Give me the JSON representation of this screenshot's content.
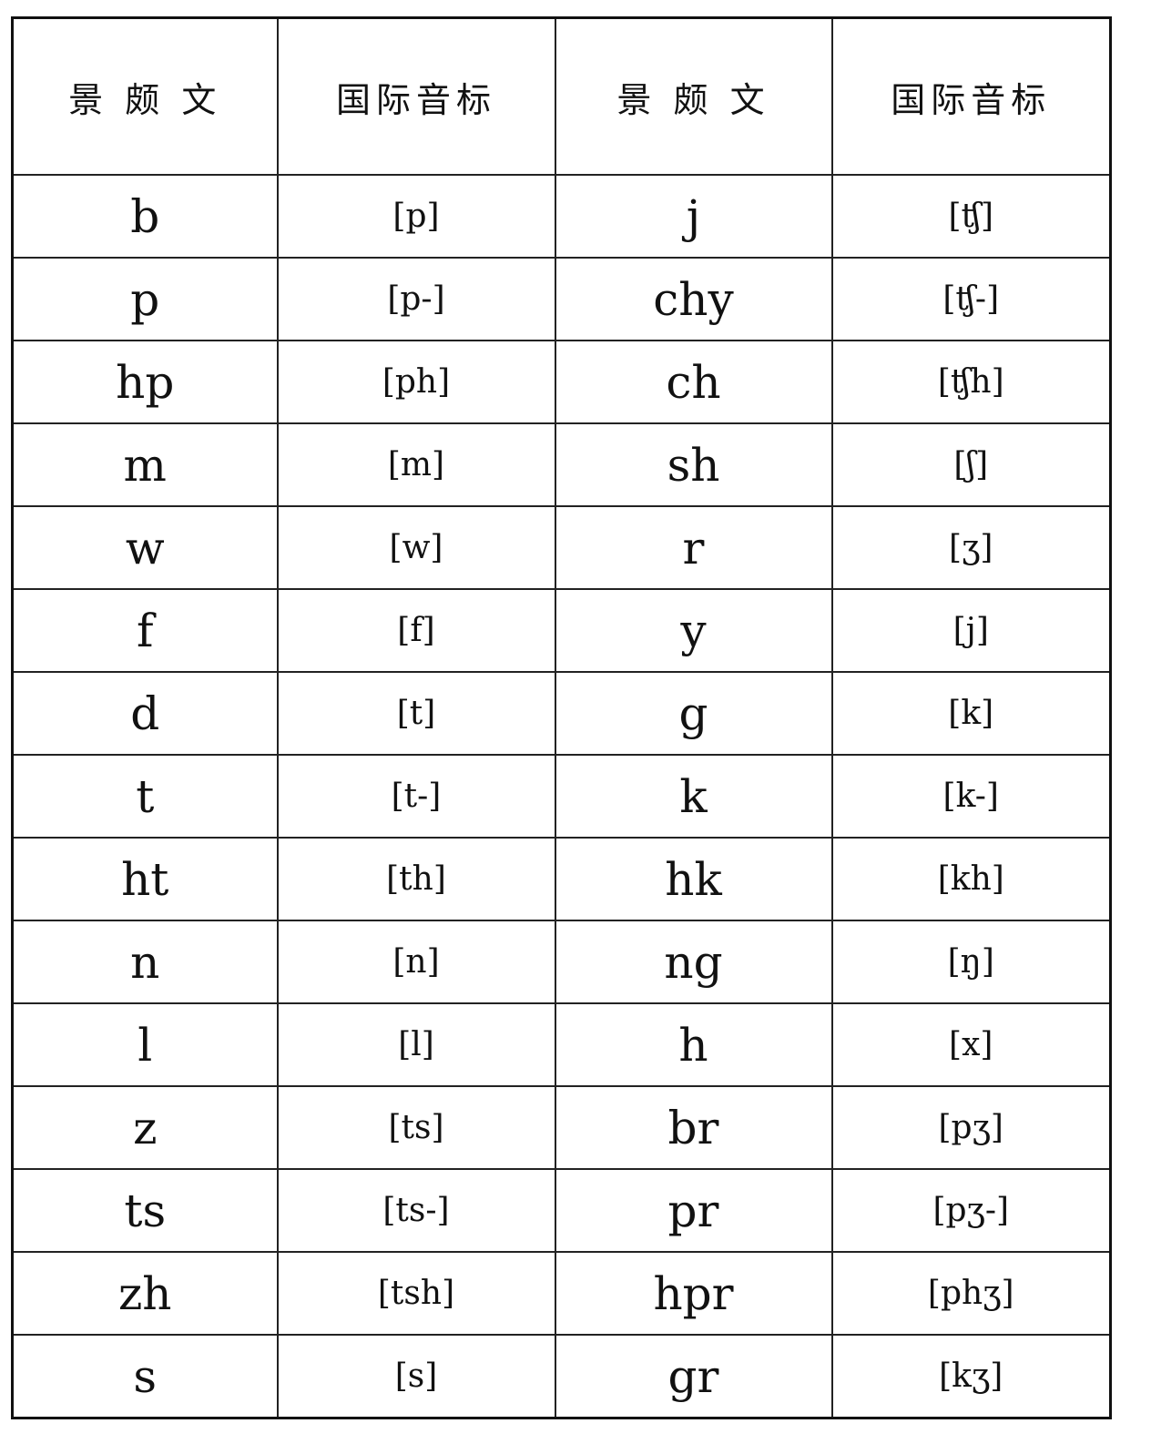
{
  "headers": [
    "景 颇 文",
    "国际音标",
    "景 颇 文",
    "国际音标"
  ],
  "rows": [
    [
      "b",
      "[p]",
      "j",
      "[ʧ]"
    ],
    [
      "p",
      "[p-]",
      "chy",
      "[ʧ-]"
    ],
    [
      "hp",
      "[ph]",
      "ch",
      "[ʧh]"
    ],
    [
      "m",
      "[m]",
      "sh",
      "[ʃ]"
    ],
    [
      "w",
      "[w]",
      "r",
      "[ʒ]"
    ],
    [
      "f",
      "[f]",
      "y",
      "[j]"
    ],
    [
      "d",
      "[t]",
      "g",
      "[k]"
    ],
    [
      "t",
      "[t-]",
      "k",
      "[k-]"
    ],
    [
      "ht",
      "[th]",
      "hk",
      "[kh]"
    ],
    [
      "n",
      "[n]",
      "ng",
      "[ŋ]"
    ],
    [
      "l",
      "[l]",
      "h",
      "[x]"
    ],
    [
      "z",
      "[ts]",
      "br",
      "[pʒ]"
    ],
    [
      "ts",
      "[ts-]",
      "pr",
      "[pʒ-]"
    ],
    [
      "zh",
      "[tsh]",
      "hpr",
      "[phʒ]"
    ],
    [
      "s",
      "[s]",
      "gr",
      "[kʒ]"
    ]
  ]
}
